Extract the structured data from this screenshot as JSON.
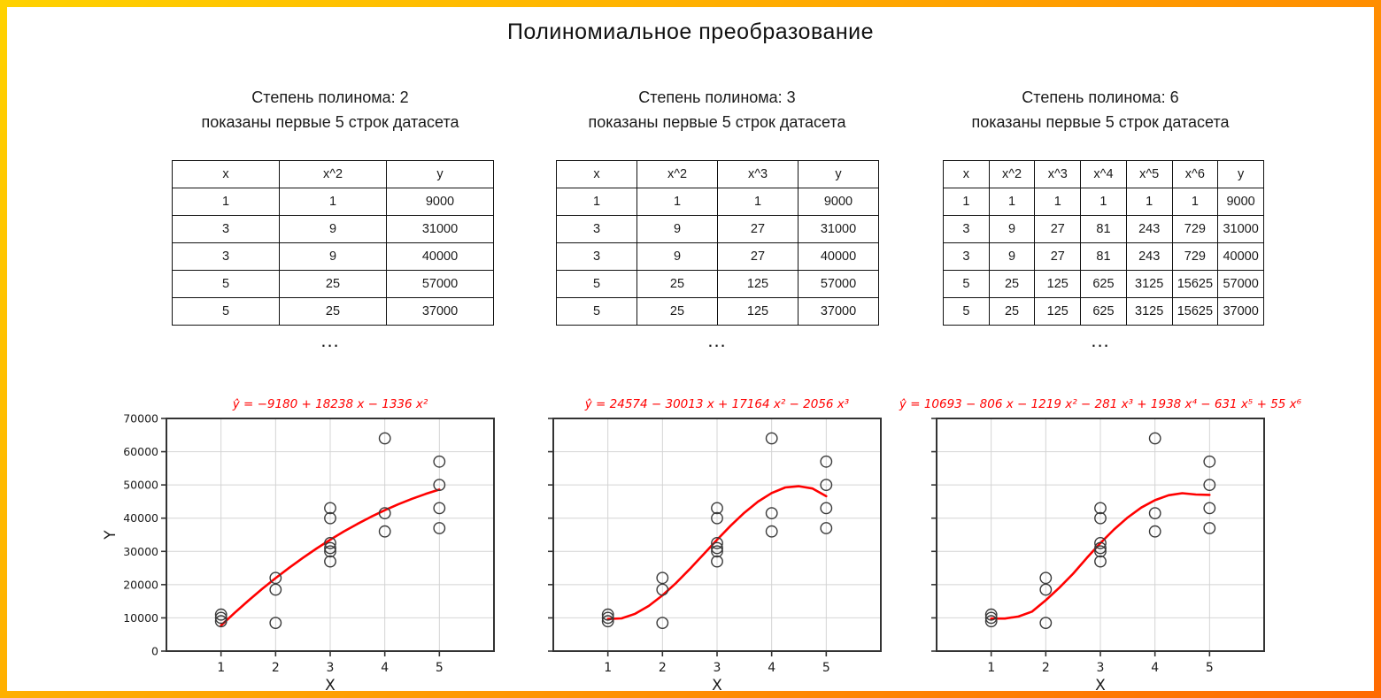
{
  "title": "Полиномиальное преобразование",
  "border": {
    "gradient_start": "#ffd200",
    "gradient_end": "#ff6a00"
  },
  "columns": [
    {
      "degree_label": "Степень полинома: 2",
      "rows_shown_label": "показаны первые 5 строк датасета",
      "ellipsis": "...",
      "equation": "ŷ = −9180 + 18238 x − 1336 x²",
      "table": {
        "headers": [
          "x",
          "x^2",
          "y"
        ],
        "rows": [
          [
            "1",
            "1",
            "9000"
          ],
          [
            "3",
            "9",
            "31000"
          ],
          [
            "3",
            "9",
            "40000"
          ],
          [
            "5",
            "25",
            "57000"
          ],
          [
            "5",
            "25",
            "37000"
          ]
        ]
      }
    },
    {
      "degree_label": "Степень полинома: 3",
      "rows_shown_label": "показаны первые 5 строк датасета",
      "ellipsis": "...",
      "equation": "ŷ = 24574 − 30013 x + 17164 x² − 2056 x³",
      "table": {
        "headers": [
          "x",
          "x^2",
          "x^3",
          "y"
        ],
        "rows": [
          [
            "1",
            "1",
            "1",
            "9000"
          ],
          [
            "3",
            "9",
            "27",
            "31000"
          ],
          [
            "3",
            "9",
            "27",
            "40000"
          ],
          [
            "5",
            "25",
            "125",
            "57000"
          ],
          [
            "5",
            "25",
            "125",
            "37000"
          ]
        ]
      }
    },
    {
      "degree_label": "Степень полинома: 6",
      "rows_shown_label": "показаны первые 5 строк датасета",
      "ellipsis": "...",
      "equation": "ŷ = 10693 − 806 x − 1219 x² − 281 x³ + 1938 x⁴ − 631 x⁵ + 55 x⁶",
      "table": {
        "headers": [
          "x",
          "x^2",
          "x^3",
          "x^4",
          "x^5",
          "x^6",
          "y"
        ],
        "rows": [
          [
            "1",
            "1",
            "1",
            "1",
            "1",
            "1",
            "9000"
          ],
          [
            "3",
            "9",
            "27",
            "81",
            "243",
            "729",
            "31000"
          ],
          [
            "3",
            "9",
            "27",
            "81",
            "243",
            "729",
            "40000"
          ],
          [
            "5",
            "25",
            "125",
            "625",
            "3125",
            "15625",
            "57000"
          ],
          [
            "5",
            "25",
            "125",
            "625",
            "3125",
            "15625",
            "37000"
          ]
        ]
      }
    }
  ],
  "chart_data": [
    {
      "type": "scatter",
      "title": "ŷ = −9180 + 18238 x − 1336 x²",
      "xlabel": "X",
      "ylabel": "Y",
      "xlim": [
        0,
        6
      ],
      "ylim": [
        0,
        70000
      ],
      "xticks": [
        1,
        2,
        3,
        4,
        5
      ],
      "yticks": [
        0,
        10000,
        20000,
        30000,
        40000,
        50000,
        60000,
        70000
      ],
      "show_ytick_labels": true,
      "grid": true,
      "scatter": {
        "x": [
          1,
          1,
          1,
          2,
          2,
          2,
          3,
          3,
          3,
          3,
          3,
          3,
          4,
          4,
          4,
          5,
          5,
          5,
          5
        ],
        "y": [
          9000,
          10000,
          11000,
          8500,
          18500,
          22000,
          27000,
          30000,
          31000,
          32500,
          40000,
          43000,
          36000,
          41500,
          64000,
          37000,
          43000,
          50000,
          57000
        ]
      },
      "fit": {
        "x": [
          1,
          1.25,
          1.5,
          1.75,
          2,
          2.25,
          2.5,
          2.75,
          3,
          3.25,
          3.5,
          3.75,
          4,
          4.25,
          4.5,
          4.75,
          5
        ],
        "y": [
          7722,
          11530,
          15171,
          18645,
          21952,
          25091,
          28065,
          30871,
          33510,
          35981,
          38287,
          40425,
          42396,
          44199,
          45837,
          47306,
          48610
        ]
      },
      "colors": {
        "curve": "#ff0000",
        "marker_edge": "#3a3a3a",
        "grid": "#d4d4d4",
        "spine": "#333333"
      }
    },
    {
      "type": "scatter",
      "title": "ŷ = 24574 − 30013 x + 17164 x² − 2056 x³",
      "xlabel": "X",
      "ylabel": "",
      "xlim": [
        0,
        6
      ],
      "ylim": [
        0,
        70000
      ],
      "xticks": [
        1,
        2,
        3,
        4,
        5
      ],
      "yticks": [
        0,
        10000,
        20000,
        30000,
        40000,
        50000,
        60000,
        70000
      ],
      "show_ytick_labels": false,
      "grid": true,
      "scatter": {
        "x": [
          1,
          1,
          1,
          2,
          2,
          2,
          3,
          3,
          3,
          3,
          3,
          3,
          4,
          4,
          4,
          5,
          5,
          5,
          5
        ],
        "y": [
          9000,
          10000,
          11000,
          8500,
          18500,
          22000,
          27000,
          30000,
          31000,
          32500,
          40000,
          43000,
          36000,
          41500,
          64000,
          37000,
          43000,
          50000,
          57000
        ]
      },
      "fit": {
        "x": [
          1,
          1.25,
          1.5,
          1.75,
          2,
          2.25,
          2.5,
          2.75,
          3,
          3.25,
          3.5,
          3.75,
          4,
          4.25,
          4.5,
          4.75,
          5
        ],
        "y": [
          9669,
          9861,
          11235,
          13597,
          16756,
          20518,
          24692,
          29083,
          33499,
          37748,
          41637,
          44972,
          47562,
          49238,
          49612,
          48930,
          46609
        ]
      },
      "colors": {
        "curve": "#ff0000",
        "marker_edge": "#3a3a3a",
        "grid": "#d4d4d4",
        "spine": "#333333"
      }
    },
    {
      "type": "scatter",
      "title": "ŷ = 10693 − 806 x − 1219 x² − 281 x³ + 1938 x⁴ − 631 x⁵ + 55 x⁶",
      "xlabel": "X",
      "ylabel": "",
      "xlim": [
        0,
        6
      ],
      "ylim": [
        0,
        70000
      ],
      "xticks": [
        1,
        2,
        3,
        4,
        5
      ],
      "yticks": [
        0,
        10000,
        20000,
        30000,
        40000,
        50000,
        60000,
        70000
      ],
      "show_ytick_labels": false,
      "grid": true,
      "scatter": {
        "x": [
          1,
          1,
          1,
          2,
          2,
          2,
          3,
          3,
          3,
          3,
          3,
          3,
          4,
          4,
          4,
          5,
          5,
          5,
          5
        ],
        "y": [
          9000,
          10000,
          11000,
          8500,
          18500,
          22000,
          27000,
          30000,
          31000,
          32500,
          40000,
          43000,
          36000,
          41500,
          64000,
          37000,
          43000,
          50000,
          57000
        ]
      },
      "fit": {
        "x": [
          1,
          1.25,
          1.5,
          1.75,
          2,
          2.25,
          2.5,
          2.75,
          3,
          3.25,
          3.5,
          3.75,
          4,
          4.25,
          4.5,
          4.75,
          5
        ],
        "y": [
          9800,
          9800,
          10400,
          11900,
          15300,
          19100,
          23300,
          28000,
          32500,
          36600,
          40200,
          43200,
          45400,
          46900,
          47500,
          47100,
          47000
        ]
      },
      "colors": {
        "curve": "#ff0000",
        "marker_edge": "#3a3a3a",
        "grid": "#d4d4d4",
        "spine": "#333333"
      }
    }
  ]
}
